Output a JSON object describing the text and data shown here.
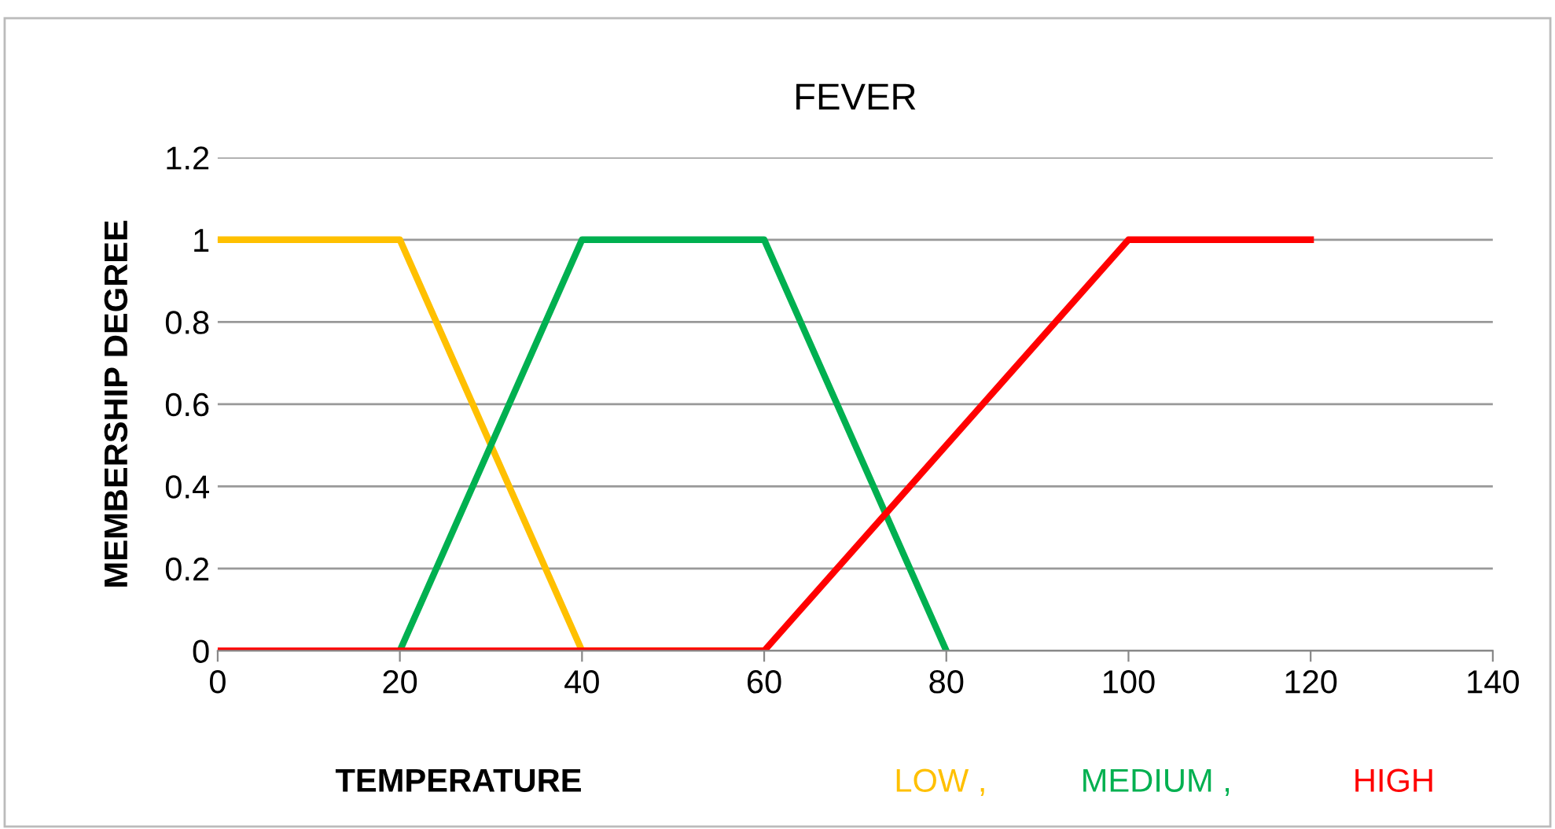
{
  "chart_data": {
    "type": "line",
    "title": "FEVER",
    "xlabel": "TEMPERATURE",
    "ylabel": "MEMBERSHIP DEGREE",
    "xlim": [
      0,
      140
    ],
    "xticks": [
      0,
      20,
      40,
      60,
      80,
      100,
      120,
      140
    ],
    "ylim": [
      0,
      1.2
    ],
    "yticks": [
      0,
      0.2,
      0.4,
      0.6,
      0.8,
      1,
      1.2
    ],
    "grid": "y",
    "legend": "bottom right",
    "marker": "none",
    "line_style": "solid",
    "series": [
      {
        "name": "LOW ,",
        "color": "#ffc000",
        "x": [
          0,
          20,
          40,
          60
        ],
        "values": [
          1,
          1,
          0,
          0
        ]
      },
      {
        "name": "MEDIUM ,",
        "color": "#00b050",
        "x": [
          20,
          40,
          60,
          80
        ],
        "values": [
          0,
          1,
          1,
          0
        ]
      },
      {
        "name": "HIGH",
        "color": "#ff0000",
        "x": [
          0,
          60,
          100,
          120
        ],
        "values": [
          0,
          0,
          1,
          1
        ]
      }
    ]
  }
}
